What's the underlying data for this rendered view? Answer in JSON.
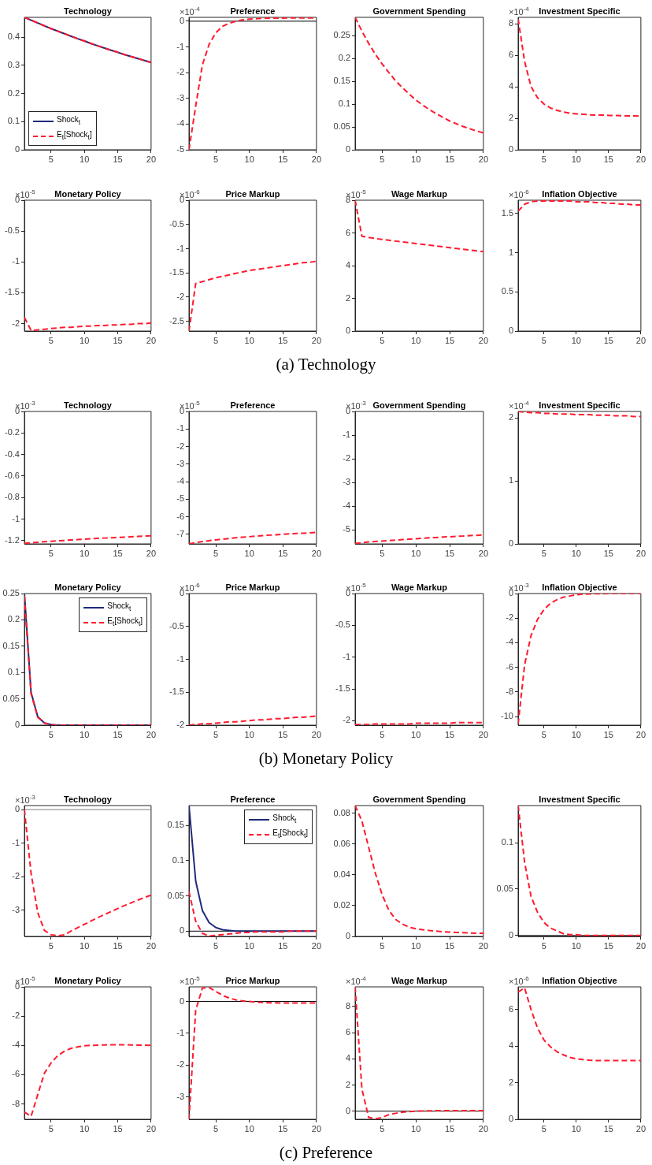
{
  "chart_data": [
    {
      "type": "line",
      "title": "Technology",
      "x": [
        1,
        2,
        3,
        4,
        5,
        6,
        7,
        8,
        9,
        10,
        11,
        12,
        13,
        14,
        15,
        16,
        17,
        18,
        19,
        20
      ],
      "xlim": [
        1,
        20
      ],
      "xticks": [
        5,
        10,
        15,
        20
      ],
      "ylim": [
        0,
        0.47
      ],
      "yticks": [
        0,
        0.1,
        0.2,
        0.3,
        0.4
      ],
      "legend": "bottom left",
      "series": [
        {
          "name": "Shock$_{t}$",
          "color": "#1f2a7a",
          "values": [
            0.47,
            0.46,
            0.45,
            0.44,
            0.43,
            0.421,
            0.412,
            0.403,
            0.394,
            0.386,
            0.377,
            0.369,
            0.361,
            0.353,
            0.346,
            0.338,
            0.331,
            0.324,
            0.317,
            0.31
          ]
        },
        {
          "name": "E$_{t}$[Shock$_{t}$]",
          "color": "#ff1a2e",
          "line_style": "dashed",
          "values": [
            0.47,
            0.46,
            0.45,
            0.44,
            0.43,
            0.421,
            0.412,
            0.403,
            0.394,
            0.386,
            0.377,
            0.369,
            0.361,
            0.353,
            0.346,
            0.338,
            0.331,
            0.324,
            0.317,
            0.31
          ]
        }
      ]
    },
    {
      "type": "line",
      "title": "Preference",
      "ylabel": "×10$^{-4}$",
      "x": [
        1,
        2,
        3,
        4,
        5,
        6,
        7,
        8,
        9,
        10,
        11,
        12,
        13,
        14,
        15,
        16,
        17,
        18,
        19,
        20
      ],
      "xlim": [
        1,
        20
      ],
      "xticks": [
        5,
        10,
        15,
        20
      ],
      "ylim": [
        -5,
        0.15
      ],
      "yticks": [
        -5,
        -4,
        -3,
        -2,
        -1,
        0
      ],
      "ref_lines": [
        {
          "axis": "y",
          "value": 0,
          "color": "#000000"
        }
      ],
      "series": [
        {
          "color": "#ff1a2e",
          "line_style": "dashed",
          "values": [
            -5,
            -3.3,
            -1.7,
            -0.9,
            -0.45,
            -0.2,
            -0.08,
            0,
            0.05,
            0.08,
            0.1,
            0.11,
            0.12,
            0.12,
            0.12,
            0.13,
            0.13,
            0.13,
            0.13,
            0.13
          ]
        }
      ]
    },
    {
      "type": "line",
      "title": "Government Spending",
      "x": [
        1,
        2,
        3,
        4,
        5,
        6,
        7,
        8,
        9,
        10,
        11,
        12,
        13,
        14,
        15,
        16,
        17,
        18,
        19,
        20
      ],
      "xlim": [
        1,
        20
      ],
      "xticks": [
        5,
        10,
        15,
        20
      ],
      "ylim": [
        0,
        0.29
      ],
      "yticks": [
        0,
        0.05,
        0.1,
        0.15,
        0.2,
        0.25
      ],
      "series": [
        {
          "color": "#ff1a2e",
          "line_style": "dashed",
          "values": [
            0.29,
            0.26,
            0.233,
            0.209,
            0.188,
            0.169,
            0.151,
            0.136,
            0.122,
            0.109,
            0.098,
            0.088,
            0.079,
            0.071,
            0.063,
            0.057,
            0.051,
            0.046,
            0.041,
            0.037
          ]
        }
      ]
    },
    {
      "type": "line",
      "title": "Investment Specific",
      "ylabel": "×10$^{-4}$",
      "x": [
        1,
        2,
        3,
        4,
        5,
        6,
        7,
        8,
        9,
        10,
        11,
        12,
        13,
        14,
        15,
        16,
        17,
        18,
        19,
        20
      ],
      "xlim": [
        1,
        20
      ],
      "xticks": [
        5,
        10,
        15,
        20
      ],
      "ylim": [
        0,
        8.4
      ],
      "yticks": [
        0,
        2,
        4,
        6,
        8
      ],
      "series": [
        {
          "color": "#ff1a2e",
          "line_style": "dashed",
          "values": [
            8.3,
            5.6,
            4.0,
            3.3,
            2.9,
            2.65,
            2.5,
            2.4,
            2.32,
            2.28,
            2.25,
            2.22,
            2.2,
            2.2,
            2.18,
            2.17,
            2.16,
            2.15,
            2.15,
            2.14
          ]
        }
      ]
    },
    {
      "type": "line",
      "title": "Monetary Policy",
      "ylabel": "×10$^{-5}$",
      "x": [
        1,
        2,
        3,
        4,
        5,
        6,
        7,
        8,
        9,
        10,
        11,
        12,
        13,
        14,
        15,
        16,
        17,
        18,
        19,
        20
      ],
      "xlim": [
        1,
        20
      ],
      "xticks": [
        5,
        10,
        15,
        20
      ],
      "ylim": [
        -2.12,
        0
      ],
      "yticks": [
        -2,
        -1.5,
        -1,
        -0.5,
        0
      ],
      "series": [
        {
          "color": "#ff1a2e",
          "line_style": "dashed",
          "values": [
            -1.9,
            -2.11,
            -2.1,
            -2.09,
            -2.08,
            -2.07,
            -2.06,
            -2.06,
            -2.05,
            -2.04,
            -2.04,
            -2.03,
            -2.03,
            -2.02,
            -2.02,
            -2.01,
            -2.01,
            -2.0,
            -2.0,
            -1.99
          ]
        }
      ]
    },
    {
      "type": "line",
      "title": "Price Markup",
      "ylabel": "×10$^{-6}$",
      "x": [
        1,
        2,
        3,
        4,
        5,
        6,
        7,
        8,
        9,
        10,
        11,
        12,
        13,
        14,
        15,
        16,
        17,
        18,
        19,
        20
      ],
      "xlim": [
        1,
        20
      ],
      "xticks": [
        5,
        10,
        15,
        20
      ],
      "ylim": [
        -2.7,
        0
      ],
      "yticks": [
        -2.5,
        -2,
        -1.5,
        -1,
        -0.5,
        0
      ],
      "series": [
        {
          "color": "#ff1a2e",
          "line_style": "dashed",
          "values": [
            -2.7,
            -1.72,
            -1.68,
            -1.64,
            -1.6,
            -1.57,
            -1.54,
            -1.51,
            -1.48,
            -1.45,
            -1.43,
            -1.41,
            -1.39,
            -1.37,
            -1.35,
            -1.33,
            -1.31,
            -1.29,
            -1.28,
            -1.26
          ]
        }
      ]
    },
    {
      "type": "line",
      "title": "Wage Markup",
      "ylabel": "×10$^{-5}$",
      "x": [
        1,
        2,
        3,
        4,
        5,
        6,
        7,
        8,
        9,
        10,
        11,
        12,
        13,
        14,
        15,
        16,
        17,
        18,
        19,
        20
      ],
      "xlim": [
        1,
        20
      ],
      "xticks": [
        5,
        10,
        15,
        20
      ],
      "ylim": [
        0,
        8
      ],
      "yticks": [
        0,
        2,
        4,
        6,
        8
      ],
      "series": [
        {
          "color": "#ff1a2e",
          "line_style": "dashed",
          "values": [
            8,
            5.8,
            5.72,
            5.66,
            5.6,
            5.55,
            5.5,
            5.45,
            5.4,
            5.35,
            5.3,
            5.25,
            5.2,
            5.15,
            5.1,
            5.05,
            5.0,
            4.95,
            4.9,
            4.85
          ]
        }
      ]
    },
    {
      "type": "line",
      "title": "Inflation Objective",
      "ylabel": "×10$^{-6}$",
      "x": [
        1,
        2,
        3,
        4,
        5,
        6,
        7,
        8,
        9,
        10,
        11,
        12,
        13,
        14,
        15,
        16,
        17,
        18,
        19,
        20
      ],
      "xlim": [
        1,
        20
      ],
      "xticks": [
        5,
        10,
        15,
        20
      ],
      "ylim": [
        0,
        1.67
      ],
      "yticks": [
        0,
        0.5,
        1,
        1.5
      ],
      "annotations": [
        "(a)  Technology"
      ],
      "series": [
        {
          "color": "#ff1a2e",
          "line_style": "dashed",
          "values": [
            1.53,
            1.62,
            1.65,
            1.66,
            1.66,
            1.66,
            1.66,
            1.66,
            1.66,
            1.65,
            1.65,
            1.65,
            1.64,
            1.64,
            1.63,
            1.63,
            1.62,
            1.62,
            1.61,
            1.61
          ]
        }
      ]
    },
    {
      "type": "line",
      "title": "Technology",
      "ylabel": "×10$^{-3}$",
      "x": [
        1,
        2,
        3,
        4,
        5,
        6,
        7,
        8,
        9,
        10,
        11,
        12,
        13,
        14,
        15,
        16,
        17,
        18,
        19,
        20
      ],
      "xlim": [
        1,
        20
      ],
      "xticks": [
        5,
        10,
        15,
        20
      ],
      "ylim": [
        -1.23,
        0
      ],
      "yticks": [
        -1.2,
        -1,
        -0.8,
        -0.6,
        -0.4,
        -0.2,
        0
      ],
      "series": [
        {
          "color": "#ff1a2e",
          "line_style": "dashed",
          "values": [
            -1.225,
            -1.22,
            -1.215,
            -1.21,
            -1.206,
            -1.202,
            -1.198,
            -1.194,
            -1.19,
            -1.186,
            -1.182,
            -1.179,
            -1.176,
            -1.173,
            -1.17,
            -1.167,
            -1.164,
            -1.161,
            -1.158,
            -1.155
          ]
        }
      ]
    },
    {
      "type": "line",
      "title": "Preference",
      "ylabel": "×10$^{-5}$",
      "x": [
        1,
        2,
        3,
        4,
        5,
        6,
        7,
        8,
        9,
        10,
        11,
        12,
        13,
        14,
        15,
        16,
        17,
        18,
        19,
        20
      ],
      "xlim": [
        1,
        20
      ],
      "xticks": [
        5,
        10,
        15,
        20
      ],
      "ylim": [
        -7.55,
        0
      ],
      "yticks": [
        -7,
        -6,
        -5,
        -4,
        -3,
        -2,
        -1,
        0
      ],
      "series": [
        {
          "color": "#ff1a2e",
          "line_style": "dashed",
          "values": [
            -7.55,
            -7.48,
            -7.42,
            -7.37,
            -7.32,
            -7.28,
            -7.24,
            -7.2,
            -7.17,
            -7.14,
            -7.11,
            -7.08,
            -7.05,
            -7.03,
            -7.0,
            -6.98,
            -6.96,
            -6.94,
            -6.92,
            -6.9
          ]
        }
      ]
    },
    {
      "type": "line",
      "title": "Government Spending",
      "ylabel": "×10$^{-3}$",
      "x": [
        1,
        2,
        3,
        4,
        5,
        6,
        7,
        8,
        9,
        10,
        11,
        12,
        13,
        14,
        15,
        16,
        17,
        18,
        19,
        20
      ],
      "xlim": [
        1,
        20
      ],
      "xticks": [
        5,
        10,
        15,
        20
      ],
      "ylim": [
        -5.6,
        0
      ],
      "yticks": [
        -5,
        -4,
        -3,
        -2,
        -1,
        0
      ],
      "series": [
        {
          "color": "#ff1a2e",
          "line_style": "dashed",
          "values": [
            -5.58,
            -5.55,
            -5.52,
            -5.5,
            -5.48,
            -5.46,
            -5.44,
            -5.42,
            -5.4,
            -5.38,
            -5.36,
            -5.34,
            -5.33,
            -5.31,
            -5.3,
            -5.28,
            -5.27,
            -5.25,
            -5.24,
            -5.22
          ]
        }
      ]
    },
    {
      "type": "line",
      "title": "Investment Specific",
      "ylabel": "×10$^{-4}$",
      "x": [
        1,
        2,
        3,
        4,
        5,
        6,
        7,
        8,
        9,
        10,
        11,
        12,
        13,
        14,
        15,
        16,
        17,
        18,
        19,
        20
      ],
      "xlim": [
        1,
        20
      ],
      "xticks": [
        5,
        10,
        15,
        20
      ],
      "ylim": [
        0,
        2.1
      ],
      "yticks": [
        0,
        1,
        2
      ],
      "series": [
        {
          "color": "#ff1a2e",
          "line_style": "dashed",
          "values": [
            2.1,
            2.09,
            2.08,
            2.08,
            2.07,
            2.07,
            2.06,
            2.06,
            2.06,
            2.05,
            2.05,
            2.05,
            2.04,
            2.04,
            2.04,
            2.03,
            2.03,
            2.03,
            2.02,
            2.02
          ]
        }
      ]
    },
    {
      "type": "line",
      "title": "Monetary Policy",
      "x": [
        1,
        2,
        3,
        4,
        5,
        6,
        7,
        8,
        9,
        10,
        11,
        12,
        13,
        14,
        15,
        16,
        17,
        18,
        19,
        20
      ],
      "xlim": [
        1,
        20
      ],
      "xticks": [
        5,
        10,
        15,
        20
      ],
      "ylim": [
        0,
        0.25
      ],
      "yticks": [
        0,
        0.05,
        0.1,
        0.15,
        0.2,
        0.25
      ],
      "legend": "top right",
      "series": [
        {
          "name": "Shock$_{t}$",
          "color": "#1f2a7a",
          "values": [
            0.25,
            0.062,
            0.016,
            0.004,
            0.001,
            0,
            0,
            0,
            0,
            0,
            0,
            0,
            0,
            0,
            0,
            0,
            0,
            0,
            0,
            0
          ]
        },
        {
          "name": "E$_{t}$[Shock$_{t}$]",
          "color": "#ff1a2e",
          "line_style": "dashed",
          "values": [
            0.245,
            0.06,
            0.015,
            0.004,
            0.001,
            0,
            0,
            0,
            0,
            0,
            0,
            0,
            0,
            0,
            0,
            0,
            0,
            0,
            0,
            0
          ]
        }
      ]
    },
    {
      "type": "line",
      "title": "Price Markup",
      "ylabel": "×10$^{-6}$",
      "x": [
        1,
        2,
        3,
        4,
        5,
        6,
        7,
        8,
        9,
        10,
        11,
        12,
        13,
        14,
        15,
        16,
        17,
        18,
        19,
        20
      ],
      "xlim": [
        1,
        20
      ],
      "xticks": [
        5,
        10,
        15,
        20
      ],
      "ylim": [
        -2,
        0
      ],
      "yticks": [
        -2,
        -1.5,
        -1,
        -0.5,
        0
      ],
      "series": [
        {
          "color": "#ff1a2e",
          "line_style": "dashed",
          "values": [
            -2,
            -1.99,
            -1.98,
            -1.98,
            -1.97,
            -1.96,
            -1.95,
            -1.95,
            -1.94,
            -1.93,
            -1.92,
            -1.92,
            -1.91,
            -1.9,
            -1.9,
            -1.89,
            -1.88,
            -1.88,
            -1.87,
            -1.86
          ]
        }
      ]
    },
    {
      "type": "line",
      "title": "Wage Markup",
      "ylabel": "×10$^{-5}$",
      "x": [
        1,
        2,
        3,
        4,
        5,
        6,
        7,
        8,
        9,
        10,
        11,
        12,
        13,
        14,
        15,
        16,
        17,
        18,
        19,
        20
      ],
      "xlim": [
        1,
        20
      ],
      "xticks": [
        5,
        10,
        15,
        20
      ],
      "ylim": [
        -2.07,
        0
      ],
      "yticks": [
        -2,
        -1.5,
        -1,
        -0.5,
        0
      ],
      "series": [
        {
          "color": "#ff1a2e",
          "line_style": "dashed",
          "values": [
            -2.06,
            -2.06,
            -2.06,
            -2.05,
            -2.05,
            -2.05,
            -2.05,
            -2.05,
            -2.05,
            -2.04,
            -2.04,
            -2.04,
            -2.04,
            -2.04,
            -2.04,
            -2.03,
            -2.03,
            -2.03,
            -2.03,
            -2.03
          ]
        }
      ]
    },
    {
      "type": "line",
      "title": "Inflation Objective",
      "ylabel": "×10$^{-3}$",
      "x": [
        1,
        2,
        3,
        4,
        5,
        6,
        7,
        8,
        9,
        10,
        11,
        12,
        13,
        14,
        15,
        16,
        17,
        18,
        19,
        20
      ],
      "xlim": [
        1,
        20
      ],
      "xticks": [
        5,
        10,
        15,
        20
      ],
      "ylim": [
        -10.7,
        0
      ],
      "yticks": [
        -10,
        -8,
        -6,
        -4,
        -2,
        0
      ],
      "annotations": [
        "(b)  Monetary Policy"
      ],
      "series": [
        {
          "color": "#ff1a2e",
          "line_style": "dashed",
          "values": [
            -10.6,
            -5.8,
            -3.4,
            -2.1,
            -1.3,
            -0.8,
            -0.5,
            -0.3,
            -0.2,
            -0.1,
            -0.05,
            -0.03,
            -0.02,
            -0.01,
            0,
            0,
            0,
            0,
            0,
            0
          ]
        }
      ]
    },
    {
      "type": "line",
      "title": "Technology",
      "ylabel": "×10$^{-3}$",
      "x": [
        1,
        2,
        3,
        4,
        5,
        6,
        7,
        8,
        9,
        10,
        11,
        12,
        13,
        14,
        15,
        16,
        17,
        18,
        19,
        20
      ],
      "xlim": [
        1,
        20
      ],
      "xticks": [
        5,
        10,
        15,
        20
      ],
      "ylim": [
        -3.78,
        0.12
      ],
      "yticks": [
        -3,
        -2,
        -1,
        0
      ],
      "ref_lines": [
        {
          "axis": "y",
          "value": 0,
          "color": "#7f7f7f"
        }
      ],
      "series": [
        {
          "color": "#ff1a2e",
          "line_style": "dashed",
          "values": [
            0,
            -1.9,
            -3.07,
            -3.6,
            -3.73,
            -3.76,
            -3.73,
            -3.62,
            -3.52,
            -3.42,
            -3.32,
            -3.22,
            -3.13,
            -3.04,
            -2.95,
            -2.86,
            -2.78,
            -2.7,
            -2.62,
            -2.55
          ]
        }
      ]
    },
    {
      "type": "line",
      "title": "Preference",
      "x": [
        1,
        2,
        3,
        4,
        5,
        6,
        7,
        8,
        9,
        10,
        11,
        12,
        13,
        14,
        15,
        16,
        17,
        18,
        19,
        20
      ],
      "xlim": [
        1,
        20
      ],
      "xticks": [
        5,
        10,
        15,
        20
      ],
      "ylim": [
        -0.0075,
        0.178
      ],
      "yticks": [
        0,
        0.05,
        0.1,
        0.15
      ],
      "legend": "top right",
      "ref_lines": [
        {
          "axis": "y",
          "value": 0,
          "color": "#000000"
        }
      ],
      "series": [
        {
          "name": "Shock$_{t}$",
          "color": "#1f2a7a",
          "values": [
            0.178,
            0.071,
            0.029,
            0.012,
            0.005,
            0.002,
            0.001,
            0,
            0,
            0,
            0,
            0,
            0,
            0,
            0,
            0,
            0,
            0,
            0,
            0
          ]
        },
        {
          "name": "E$_{t}$[Shock$_{t}$]",
          "color": "#ff1a2e",
          "line_style": "dashed",
          "values": [
            0.056,
            0.014,
            -0.003,
            -0.007,
            -0.006,
            -0.005,
            -0.004,
            -0.003,
            -0.002,
            -0.002,
            -0.001,
            -0.001,
            -0.001,
            -0.001,
            -0.001,
            0,
            0,
            0,
            0,
            0
          ]
        }
      ]
    },
    {
      "type": "line",
      "title": "Government Spending",
      "x": [
        1,
        2,
        3,
        4,
        5,
        6,
        7,
        8,
        9,
        10,
        11,
        12,
        13,
        14,
        15,
        16,
        17,
        18,
        19,
        20
      ],
      "xlim": [
        1,
        20
      ],
      "xticks": [
        5,
        10,
        15,
        20
      ],
      "ylim": [
        0,
        0.085
      ],
      "yticks": [
        0,
        0.02,
        0.04,
        0.06,
        0.08
      ],
      "series": [
        {
          "color": "#ff1a2e",
          "line_style": "dashed",
          "values": [
            0.085,
            0.075,
            0.058,
            0.041,
            0.027,
            0.017,
            0.011,
            0.008,
            0.006,
            0.005,
            0.0043,
            0.0038,
            0.0034,
            0.003,
            0.0028,
            0.0026,
            0.0024,
            0.0022,
            0.0021,
            0.002
          ]
        }
      ]
    },
    {
      "type": "line",
      "title": "Investment Specific",
      "x": [
        1,
        2,
        3,
        4,
        5,
        6,
        7,
        8,
        9,
        10,
        11,
        12,
        13,
        14,
        15,
        16,
        17,
        18,
        19,
        20
      ],
      "xlim": [
        1,
        20
      ],
      "xticks": [
        5,
        10,
        15,
        20
      ],
      "ylim": [
        -0.001,
        0.14
      ],
      "yticks": [
        0,
        0.05,
        0.1
      ],
      "ref_lines": [
        {
          "axis": "y",
          "value": 0,
          "color": "#000000"
        }
      ],
      "series": [
        {
          "color": "#ff1a2e",
          "line_style": "dashed",
          "values": [
            0.14,
            0.079,
            0.042,
            0.025,
            0.014,
            0.008,
            0.005,
            0.002,
            0.001,
            0.001,
            0,
            0,
            0,
            0,
            0,
            0,
            0,
            0,
            0,
            0
          ]
        }
      ]
    },
    {
      "type": "line",
      "title": "Monetary Policy",
      "ylabel": "×10$^{-5}$",
      "x": [
        1,
        2,
        3,
        4,
        5,
        6,
        7,
        8,
        9,
        10,
        11,
        12,
        13,
        14,
        15,
        16,
        17,
        18,
        19,
        20
      ],
      "xlim": [
        1,
        20
      ],
      "xticks": [
        5,
        10,
        15,
        20
      ],
      "ylim": [
        -9.05,
        0
      ],
      "yticks": [
        -8,
        -6,
        -4,
        -2,
        0
      ],
      "series": [
        {
          "color": "#ff1a2e",
          "line_style": "dashed",
          "values": [
            -8.55,
            -8.85,
            -7.36,
            -5.9,
            -5.2,
            -4.7,
            -4.4,
            -4.2,
            -4.1,
            -4.03,
            -4.0,
            -3.98,
            -3.97,
            -3.96,
            -3.96,
            -3.96,
            -3.97,
            -3.98,
            -3.99,
            -4.0
          ]
        }
      ]
    },
    {
      "type": "line",
      "title": "Price Markup",
      "ylabel": "×10$^{-5}$",
      "x": [
        1,
        2,
        3,
        4,
        5,
        6,
        7,
        8,
        9,
        10,
        11,
        12,
        13,
        14,
        15,
        16,
        17,
        18,
        19,
        20
      ],
      "xlim": [
        1,
        20
      ],
      "xticks": [
        5,
        10,
        15,
        20
      ],
      "ylim": [
        -3.7,
        0.46
      ],
      "yticks": [
        -3,
        -2,
        -1,
        0
      ],
      "ref_lines": [
        {
          "axis": "y",
          "value": 0,
          "color": "#000000"
        }
      ],
      "series": [
        {
          "color": "#ff1a2e",
          "line_style": "dashed",
          "values": [
            -3.7,
            -0.27,
            0.42,
            0.44,
            0.32,
            0.19,
            0.11,
            0.05,
            0.02,
            0,
            -0.02,
            -0.03,
            -0.04,
            -0.04,
            -0.05,
            -0.05,
            -0.05,
            -0.05,
            -0.05,
            -0.05
          ]
        }
      ]
    },
    {
      "type": "line",
      "title": "Wage Markup",
      "ylabel": "×10$^{-4}$",
      "x": [
        1,
        2,
        3,
        4,
        5,
        6,
        7,
        8,
        9,
        10,
        11,
        12,
        13,
        14,
        15,
        16,
        17,
        18,
        19,
        20
      ],
      "xlim": [
        1,
        20
      ],
      "xticks": [
        5,
        10,
        15,
        20
      ],
      "ylim": [
        -0.62,
        9.5
      ],
      "yticks": [
        0,
        2,
        4,
        6,
        8
      ],
      "ref_lines": [
        {
          "axis": "y",
          "value": 0,
          "color": "#000000"
        }
      ],
      "series": [
        {
          "color": "#ff1a2e",
          "line_style": "dashed",
          "values": [
            9.5,
            1.7,
            -0.47,
            -0.6,
            -0.47,
            -0.27,
            -0.16,
            -0.08,
            -0.03,
            0,
            0.02,
            0.03,
            0.04,
            0.05,
            0.05,
            0.05,
            0.05,
            0.05,
            0.05,
            0.05
          ]
        }
      ]
    },
    {
      "type": "line",
      "title": "Inflation Objective",
      "ylabel": "×10$^{-6}$",
      "x": [
        1,
        2,
        3,
        4,
        5,
        6,
        7,
        8,
        9,
        10,
        11,
        12,
        13,
        14,
        15,
        16,
        17,
        18,
        19,
        20
      ],
      "xlim": [
        1,
        20
      ],
      "xticks": [
        5,
        10,
        15,
        20
      ],
      "ylim": [
        0,
        7.25
      ],
      "yticks": [
        0,
        2,
        4,
        6
      ],
      "annotations": [
        "(c)  Preference"
      ],
      "series": [
        {
          "color": "#ff1a2e",
          "line_style": "dashed",
          "values": [
            6.96,
            7.2,
            6.0,
            5.0,
            4.34,
            3.97,
            3.7,
            3.53,
            3.39,
            3.31,
            3.27,
            3.24,
            3.22,
            3.22,
            3.21,
            3.21,
            3.21,
            3.22,
            3.22,
            3.22
          ]
        }
      ]
    }
  ]
}
